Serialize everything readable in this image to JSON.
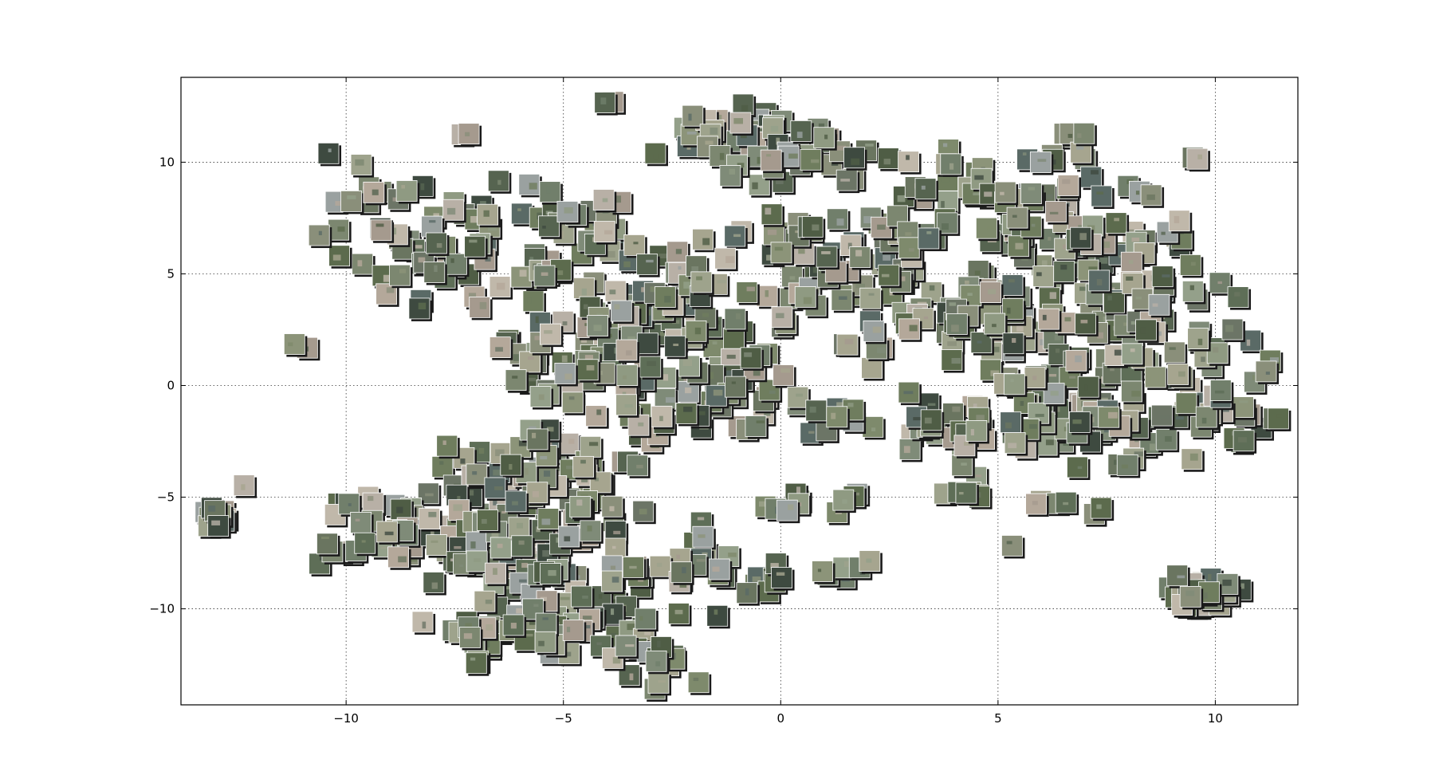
{
  "chart_data": {
    "type": "scatter",
    "title": "",
    "xlabel": "",
    "ylabel": "",
    "xlim": [
      -13.8,
      11.9
    ],
    "ylim": [
      -14.3,
      13.8
    ],
    "grid": true,
    "grid_style": "dotted",
    "x_ticks": [
      -10,
      -5,
      0,
      5,
      10
    ],
    "y_ticks": [
      10,
      5,
      0,
      -5,
      -10
    ],
    "x_tick_labels": [
      "−10",
      "−5",
      "0",
      "5",
      "10"
    ],
    "y_tick_labels": [
      "10",
      "5",
      "0",
      "−5",
      "−10"
    ],
    "marker": "thumbnail-tiles",
    "clusters": [
      {
        "x": -4.0,
        "y": 12.6,
        "sx": 0.2,
        "sy": 0.2,
        "n": 2
      },
      {
        "x": -7.3,
        "y": 11.4,
        "sx": 0.2,
        "sy": 0.2,
        "n": 2
      },
      {
        "x": -9.4,
        "y": 7.5,
        "sx": 1.0,
        "sy": 1.8,
        "n": 18
      },
      {
        "x": -7.2,
        "y": 5.7,
        "sx": 1.3,
        "sy": 2.0,
        "n": 45
      },
      {
        "x": -4.3,
        "y": 6.2,
        "sx": 1.1,
        "sy": 1.8,
        "n": 35
      },
      {
        "x": -3.0,
        "y": 3.0,
        "sx": 1.8,
        "sy": 1.6,
        "n": 60
      },
      {
        "x": -1.6,
        "y": 11.2,
        "sx": 1.2,
        "sy": 0.8,
        "n": 30
      },
      {
        "x": 0.6,
        "y": 10.3,
        "sx": 1.2,
        "sy": 1.2,
        "n": 25
      },
      {
        "x": 1.0,
        "y": 5.5,
        "sx": 2.3,
        "sy": 2.6,
        "n": 75
      },
      {
        "x": 4.5,
        "y": 8.0,
        "sx": 2.0,
        "sy": 2.0,
        "n": 55
      },
      {
        "x": 7.0,
        "y": 6.6,
        "sx": 1.6,
        "sy": 2.0,
        "n": 55
      },
      {
        "x": 4.8,
        "y": 3.0,
        "sx": 2.1,
        "sy": 1.8,
        "n": 65
      },
      {
        "x": 8.8,
        "y": 2.6,
        "sx": 1.7,
        "sy": 2.0,
        "n": 55
      },
      {
        "x": 6.5,
        "y": -1.5,
        "sx": 2.3,
        "sy": 1.7,
        "n": 75
      },
      {
        "x": 10.2,
        "y": -0.8,
        "sx": 1.0,
        "sy": 1.3,
        "n": 22
      },
      {
        "x": 3.5,
        "y": -1.6,
        "sx": 1.0,
        "sy": 1.0,
        "n": 14
      },
      {
        "x": -1.5,
        "y": -0.5,
        "sx": 1.7,
        "sy": 1.6,
        "n": 45
      },
      {
        "x": -4.6,
        "y": 0.6,
        "sx": 1.4,
        "sy": 1.4,
        "n": 35
      },
      {
        "x": -5.5,
        "y": -3.8,
        "sx": 1.7,
        "sy": 1.6,
        "n": 50
      },
      {
        "x": -8.8,
        "y": -6.3,
        "sx": 1.4,
        "sy": 1.2,
        "n": 45
      },
      {
        "x": -6.5,
        "y": -7.2,
        "sx": 1.4,
        "sy": 1.8,
        "n": 55
      },
      {
        "x": -4.5,
        "y": -8.5,
        "sx": 1.5,
        "sy": 1.9,
        "n": 50
      },
      {
        "x": -6.0,
        "y": -11.2,
        "sx": 1.4,
        "sy": 0.9,
        "n": 35
      },
      {
        "x": -3.3,
        "y": -12.0,
        "sx": 1.0,
        "sy": 1.0,
        "n": 18
      },
      {
        "x": -1.5,
        "y": -8.0,
        "sx": 1.2,
        "sy": 1.6,
        "n": 25
      },
      {
        "x": 1.6,
        "y": -8.4,
        "sx": 0.4,
        "sy": 0.3,
        "n": 6
      },
      {
        "x": 1.1,
        "y": -5.2,
        "sx": 0.6,
        "sy": 0.4,
        "n": 6
      },
      {
        "x": 4.2,
        "y": -4.8,
        "sx": 0.6,
        "sy": 0.4,
        "n": 6
      },
      {
        "x": 6.2,
        "y": -5.3,
        "sx": 0.4,
        "sy": 0.2,
        "n": 4
      },
      {
        "x": 7.3,
        "y": -5.6,
        "sx": 0.3,
        "sy": 0.3,
        "n": 2
      },
      {
        "x": 5.3,
        "y": -7.2,
        "sx": 0.1,
        "sy": 0.1,
        "n": 1
      },
      {
        "x": 9.7,
        "y": -9.3,
        "sx": 0.5,
        "sy": 0.5,
        "n": 45
      },
      {
        "x": -13.0,
        "y": -5.8,
        "sx": 0.2,
        "sy": 0.4,
        "n": 16
      },
      {
        "x": -12.3,
        "y": -4.5,
        "sx": 0.1,
        "sy": 0.1,
        "n": 1
      },
      {
        "x": -10.9,
        "y": 1.8,
        "sx": 0.3,
        "sy": 0.4,
        "n": 2
      },
      {
        "x": -10.6,
        "y": 6.8,
        "sx": 0.1,
        "sy": 0.1,
        "n": 1
      },
      {
        "x": 9.6,
        "y": 10.2,
        "sx": 0.1,
        "sy": 0.1,
        "n": 2
      },
      {
        "x": 1.0,
        "y": -1.2,
        "sx": 0.5,
        "sy": 0.4,
        "n": 6
      },
      {
        "x": -0.2,
        "y": -5.3,
        "sx": 0.5,
        "sy": 0.4,
        "n": 4
      },
      {
        "x": 6.5,
        "y": 10.9,
        "sx": 0.7,
        "sy": 0.6,
        "n": 8
      }
    ],
    "tile_colors": [
      "#6f7d5e",
      "#7e8a6c",
      "#5c6b4d",
      "#8c9479",
      "#9ea38c",
      "#6a7560",
      "#7c8770",
      "#4f5d45",
      "#a6a58f",
      "#8a8f7a",
      "#5e6e57",
      "#b4a89a",
      "#9aa1a0",
      "#6c7566",
      "#3e4a40",
      "#7f8b78",
      "#a59a8e",
      "#566450",
      "#8f9a82",
      "#c0b8aa",
      "#717f6b",
      "#5a6a66",
      "#94a08a",
      "#b8b0a6"
    ],
    "tile_edge_color": "#1a1a1a"
  }
}
